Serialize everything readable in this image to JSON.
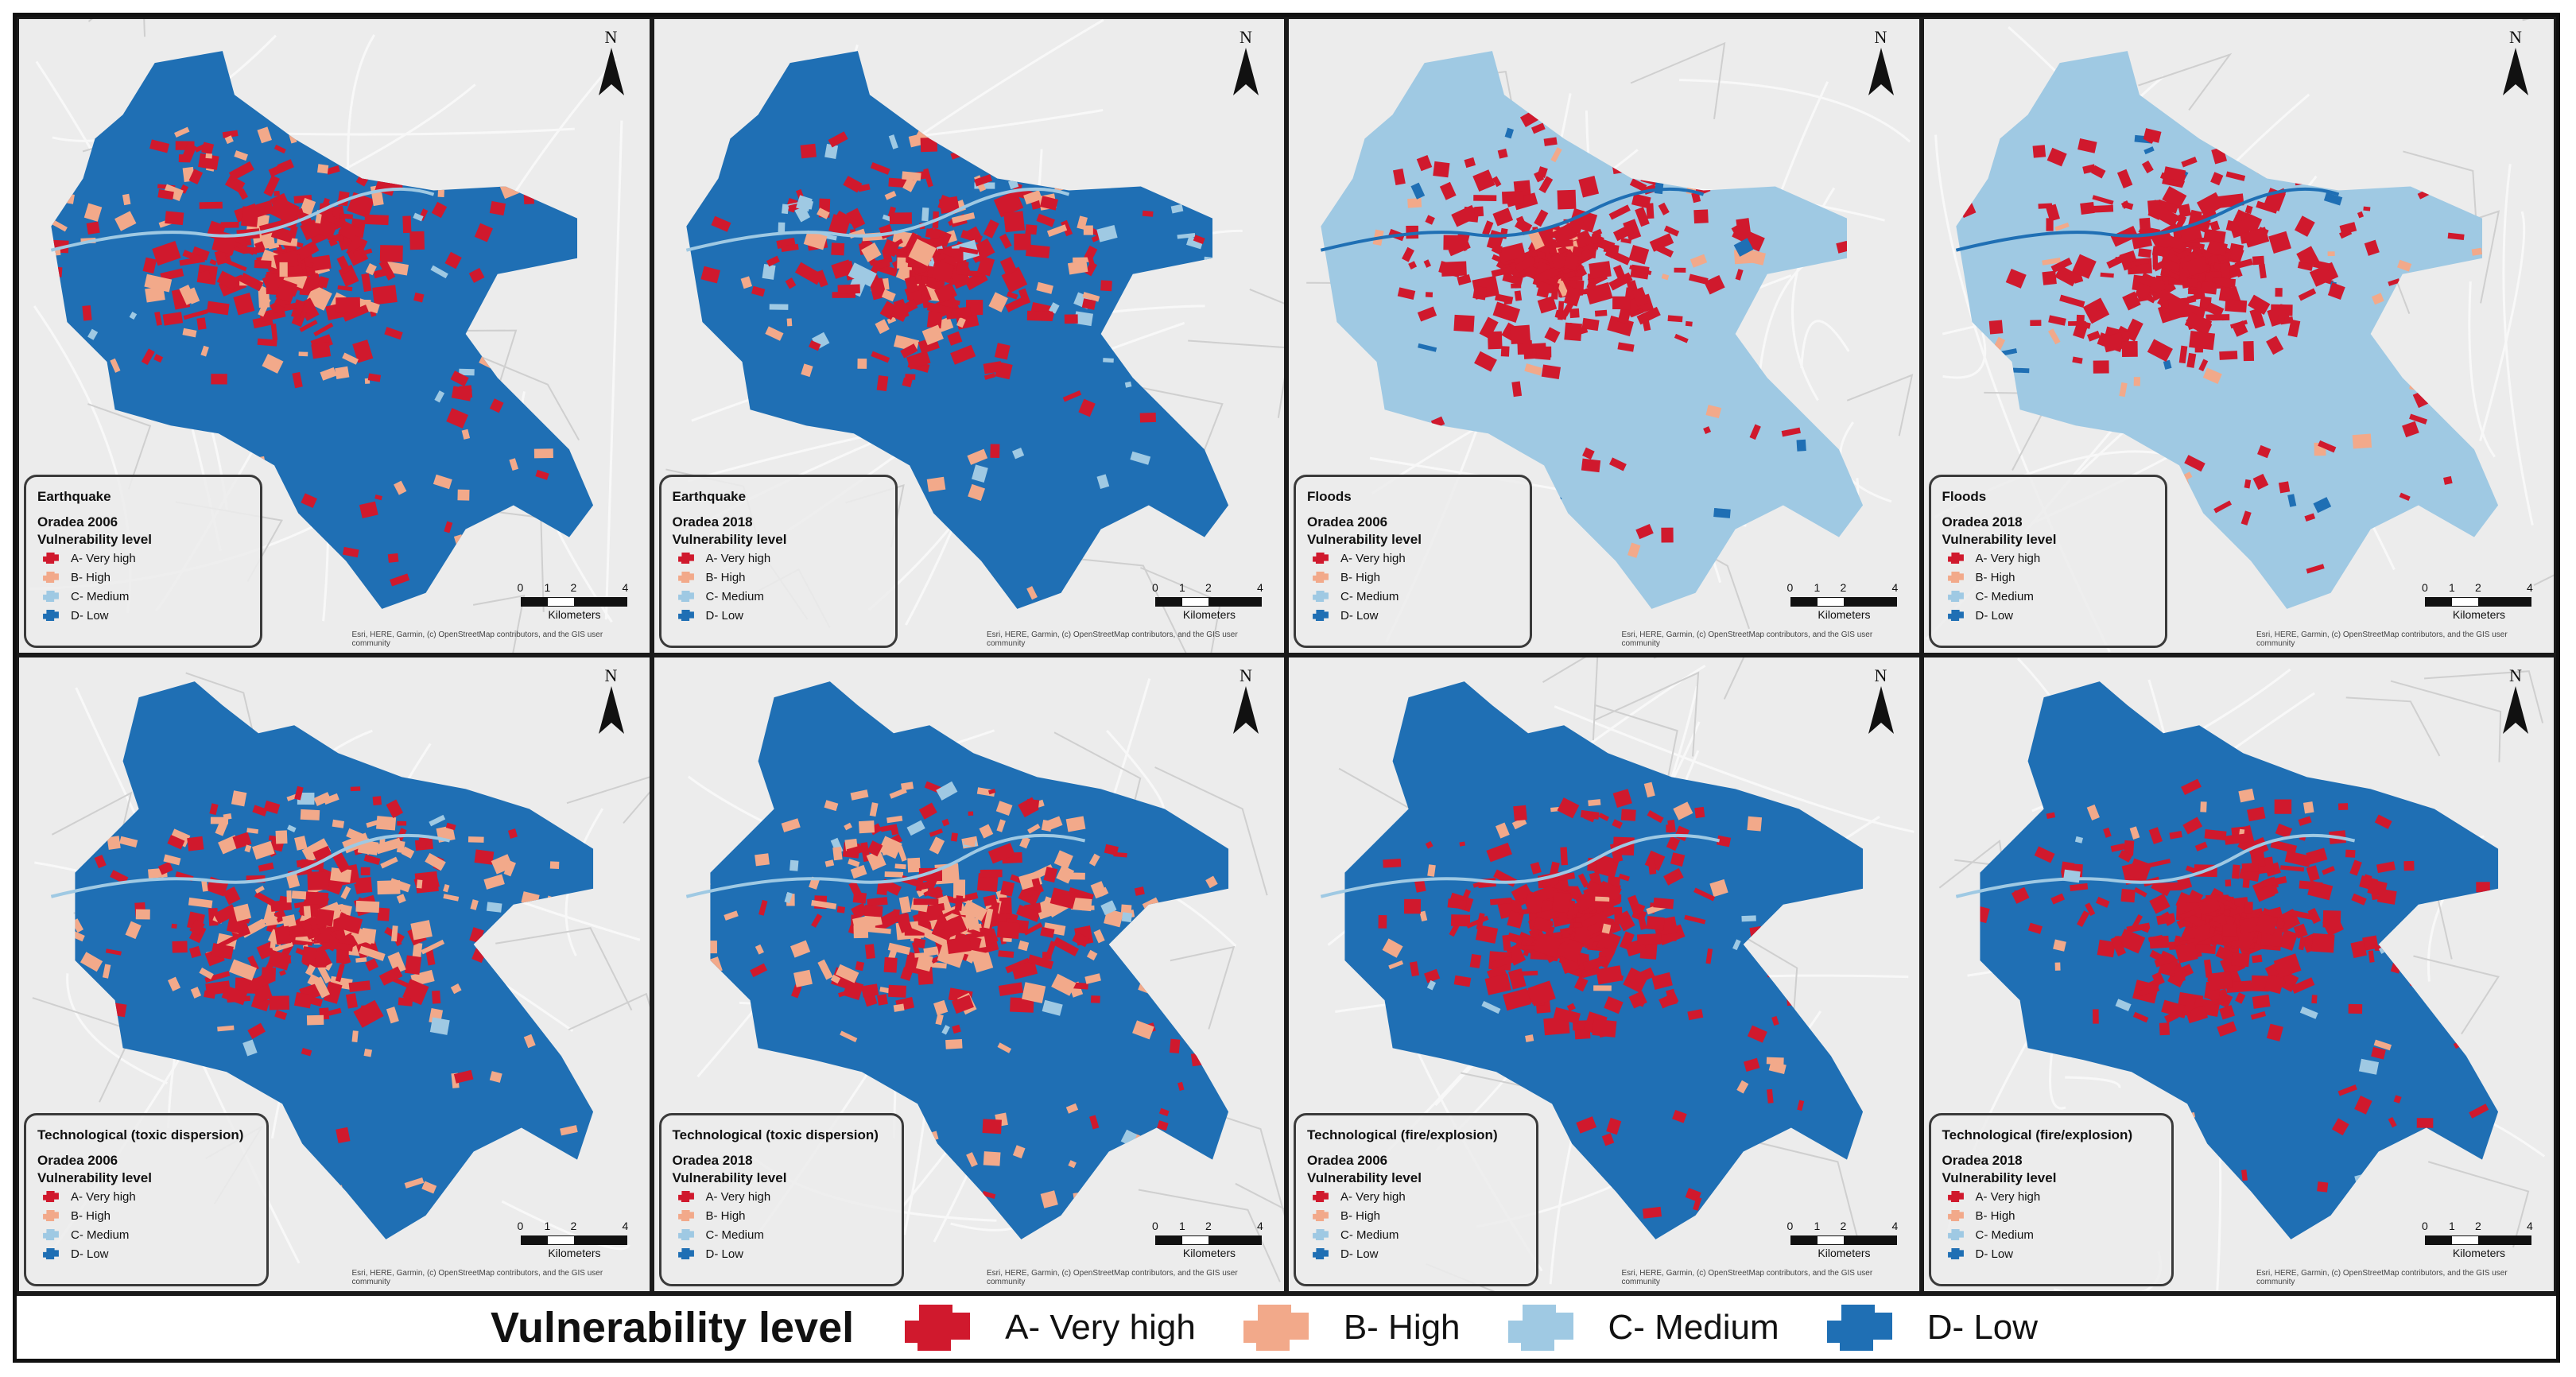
{
  "colors": {
    "very_high": "#d0192d",
    "high": "#f2a98a",
    "medium": "#9fc9e3",
    "low": "#1f6fb4",
    "basemap": "#ececec",
    "roads": "#ffffff"
  },
  "shared": {
    "north_letter": "N",
    "vulnerability_title": "Vulnerability level",
    "classes": [
      {
        "key": "very_high",
        "label": "A- Very high"
      },
      {
        "key": "high",
        "label": "B- High"
      },
      {
        "key": "medium",
        "label": "C- Medium"
      },
      {
        "key": "low",
        "label": "D- Low"
      }
    ],
    "scale_ticks": [
      "0",
      "1",
      "2",
      "4"
    ],
    "scale_unit": "Kilometers",
    "attribution": "Esri, HERE, Garmin, (c) OpenStreetMap contributors, and the GIS user community"
  },
  "panels": [
    {
      "hazard": "Earthquake",
      "city_year": "Oradea 2006",
      "base": "low",
      "mix": [
        0.6,
        0.22,
        0.03
      ]
    },
    {
      "hazard": "Earthquake",
      "city_year": "Oradea 2018",
      "base": "low",
      "mix": [
        0.55,
        0.15,
        0.12
      ]
    },
    {
      "hazard": "Floods",
      "city_year": "Oradea 2006",
      "base": "medium",
      "mix": [
        0.7,
        0.1,
        0.05
      ]
    },
    {
      "hazard": "Floods",
      "city_year": "Oradea 2018",
      "base": "medium",
      "mix": [
        0.72,
        0.14,
        0.08
      ]
    },
    {
      "hazard": "Technological (toxic dispersion)",
      "city_year": "Oradea 2006",
      "base": "low",
      "mix": [
        0.45,
        0.4,
        0.05
      ]
    },
    {
      "hazard": "Technological (toxic dispersion)",
      "city_year": "Oradea 2018",
      "base": "low",
      "mix": [
        0.42,
        0.45,
        0.05
      ]
    },
    {
      "hazard": "Technological (fire/explosion)",
      "city_year": "Oradea 2006",
      "base": "low",
      "mix": [
        0.7,
        0.1,
        0.04
      ]
    },
    {
      "hazard": "Technological (fire/explosion)",
      "city_year": "Oradea 2018",
      "base": "low",
      "mix": [
        0.72,
        0.08,
        0.04
      ]
    }
  ],
  "bottom_legend": {
    "title": "Vulnerability level",
    "items": [
      {
        "key": "very_high",
        "label": "A- Very high"
      },
      {
        "key": "high",
        "label": "B- High"
      },
      {
        "key": "medium",
        "label": "C- Medium"
      },
      {
        "key": "low",
        "label": "D- Low"
      }
    ]
  }
}
